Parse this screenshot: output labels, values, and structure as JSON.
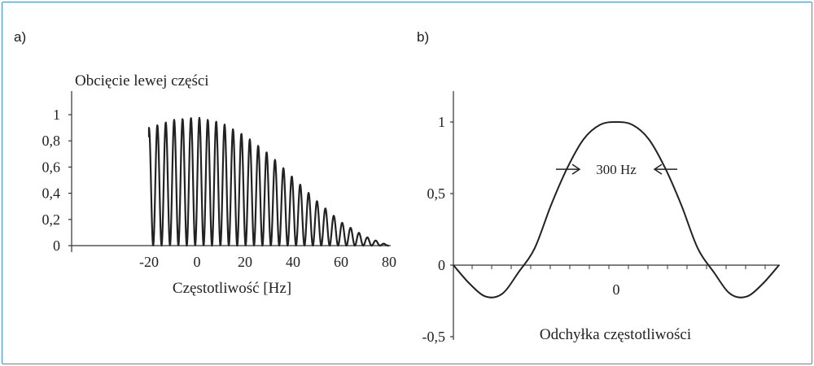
{
  "panels": [
    {
      "label": "a)"
    },
    {
      "label": "b)"
    }
  ],
  "chart_data": [
    {
      "type": "line",
      "title": "Obcięcie lewej części",
      "xlabel": "Częstotliwość [Hz]",
      "ylabel": "",
      "xlim": [
        -70,
        88
      ],
      "ylim": [
        0,
        1.1
      ],
      "xticks": [
        -20,
        0,
        20,
        40,
        60,
        80
      ],
      "xtick_labels": [
        "-20",
        "0",
        "20",
        "40",
        "60",
        "80"
      ],
      "yticks": [
        0,
        0.2,
        0.4,
        0.6,
        0.8,
        1
      ],
      "ytick_labels": [
        "0",
        "0,2",
        "0,4",
        "0,6",
        "0,8",
        "1"
      ],
      "signal": {
        "description_of_shape": "oscillating comb",
        "start_hz": -20,
        "end_hz": 80,
        "peak_spacing_hz": 3.5,
        "envelope_peak_hz": 0,
        "envelope": [
          {
            "x": -20,
            "y": 0.9
          },
          {
            "x": -10,
            "y": 0.96
          },
          {
            "x": 0,
            "y": 0.98
          },
          {
            "x": 10,
            "y": 0.94
          },
          {
            "x": 20,
            "y": 0.84
          },
          {
            "x": 30,
            "y": 0.7
          },
          {
            "x": 40,
            "y": 0.52
          },
          {
            "x": 50,
            "y": 0.34
          },
          {
            "x": 60,
            "y": 0.18
          },
          {
            "x": 70,
            "y": 0.07
          },
          {
            "x": 80,
            "y": 0.0
          }
        ]
      },
      "grid": false
    },
    {
      "type": "line",
      "title": "",
      "xlabel": "Odchyłka częstotliwości",
      "ylabel": "",
      "xlim": [
        -1.0,
        1.0
      ],
      "ylim": [
        -0.5,
        1.2
      ],
      "xticks": [
        0
      ],
      "xtick_labels": [
        "0"
      ],
      "yticks": [
        -0.5,
        0,
        0.5,
        1
      ],
      "ytick_labels": [
        "-0,5",
        "0",
        "0,5",
        "1"
      ],
      "series": [
        {
          "x": [
            -1.0,
            -0.9,
            -0.8,
            -0.7,
            -0.6,
            -0.5,
            -0.4,
            -0.3,
            -0.2,
            -0.1,
            0,
            0.1,
            0.2,
            0.3,
            0.4,
            0.5,
            0.6,
            0.7,
            0.8,
            0.9,
            1.0
          ],
          "values": [
            0.0,
            -0.13,
            -0.22,
            -0.2,
            -0.05,
            0.12,
            0.42,
            0.68,
            0.88,
            0.98,
            1.0,
            0.98,
            0.88,
            0.68,
            0.42,
            0.12,
            -0.05,
            -0.2,
            -0.22,
            -0.13,
            0.0
          ]
        }
      ],
      "annotations": [
        {
          "text": "300 Hz",
          "y": 0.67,
          "arrows": "inward"
        }
      ],
      "grid": false
    }
  ]
}
